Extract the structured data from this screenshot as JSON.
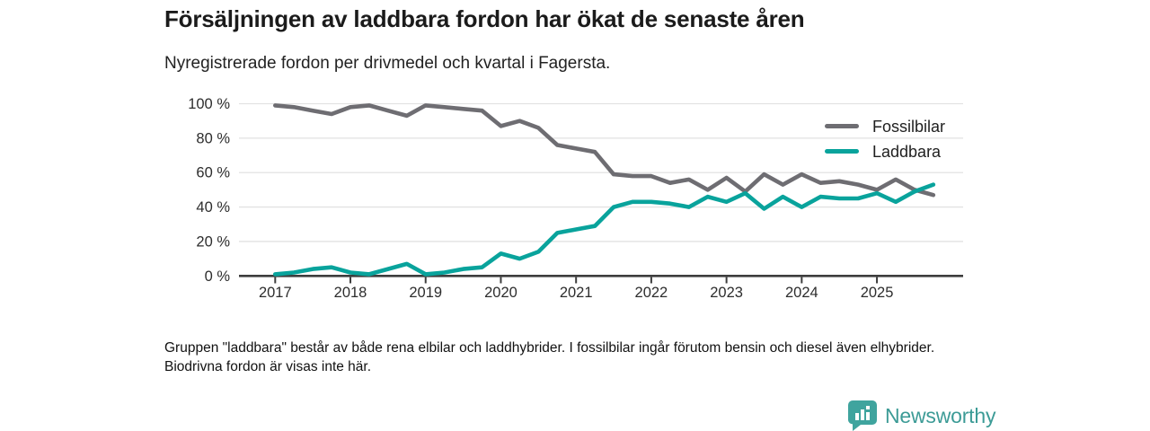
{
  "header": {
    "title": "Försäljningen av laddbara fordon har ökat de senaste åren",
    "subtitle": "Nyregistrerade fordon per drivmedel och kvartal i Fagersta."
  },
  "chart_data": {
    "type": "line",
    "unit": "%",
    "x": [
      "2017Q1",
      "2017Q2",
      "2017Q3",
      "2017Q4",
      "2018Q1",
      "2018Q2",
      "2018Q3",
      "2018Q4",
      "2019Q1",
      "2019Q2",
      "2019Q3",
      "2019Q4",
      "2020Q1",
      "2020Q2",
      "2020Q3",
      "2020Q4",
      "2021Q1",
      "2021Q2",
      "2021Q3",
      "2021Q4",
      "2022Q1",
      "2022Q2",
      "2022Q3",
      "2022Q4",
      "2023Q1",
      "2023Q2",
      "2023Q3",
      "2023Q4",
      "2024Q1",
      "2024Q2",
      "2024Q3",
      "2024Q4",
      "2025Q1",
      "2025Q2",
      "2025Q3",
      "2025Q4"
    ],
    "series": [
      {
        "name": "Fossilbilar",
        "color": "#6e6d72",
        "values": [
          99,
          98,
          96,
          94,
          98,
          99,
          96,
          93,
          99,
          98,
          97,
          96,
          87,
          90,
          86,
          76,
          74,
          72,
          59,
          58,
          58,
          54,
          56,
          50,
          57,
          49,
          59,
          53,
          59,
          54,
          55,
          53,
          50,
          56,
          50,
          47
        ]
      },
      {
        "name": "Laddbara",
        "color": "#09a39c",
        "values": [
          1,
          2,
          4,
          5,
          2,
          1,
          4,
          7,
          1,
          2,
          4,
          5,
          13,
          10,
          14,
          25,
          27,
          29,
          40,
          43,
          43,
          42,
          40,
          46,
          43,
          48,
          39,
          46,
          40,
          46,
          45,
          45,
          48,
          43,
          49,
          53
        ]
      }
    ],
    "ylim": [
      0,
      100
    ],
    "y_ticks": [
      {
        "value": 0,
        "label": "0 %"
      },
      {
        "value": 20,
        "label": "20 %"
      },
      {
        "value": 40,
        "label": "40 %"
      },
      {
        "value": 60,
        "label": "60 %"
      },
      {
        "value": 80,
        "label": "80 %"
      },
      {
        "value": 100,
        "label": "100 %"
      }
    ],
    "x_tick_labels": [
      "2017",
      "2018",
      "2019",
      "2020",
      "2021",
      "2022",
      "2023",
      "2024",
      "2025"
    ],
    "grid": "horizontal",
    "legend_position": "top-right",
    "colors": {
      "axis": "#3d3d3d",
      "gridline": "#e2e2e2",
      "tick_text": "#2d2d2d"
    }
  },
  "footnote": "Gruppen \"laddbara\" består av både rena elbilar och laddhybrider. I fossilbilar ingår förutom bensin och diesel även elhybrider. Biodrivna fordon är visas inte här.",
  "logo": {
    "text": "Newsworthy",
    "icon_color": "#3fa49e",
    "text_color": "#3c9b96"
  }
}
